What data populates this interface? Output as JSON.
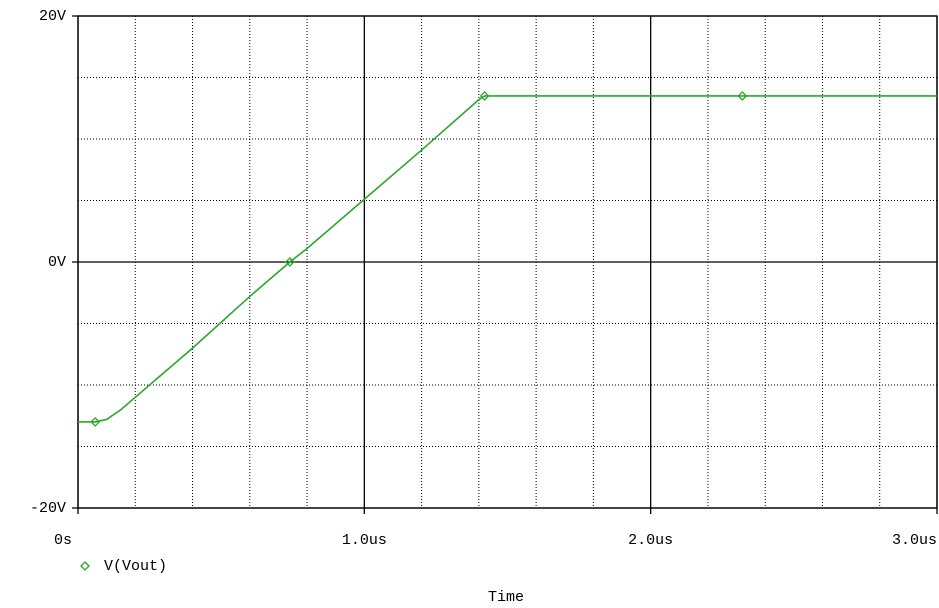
{
  "chart_data": {
    "type": "line",
    "x_label": "Time",
    "xlim": [
      0,
      3
    ],
    "ylim": [
      -20,
      20
    ],
    "xticks": [
      {
        "value": 0,
        "label": "0s"
      },
      {
        "value": 1,
        "label": "1.0us"
      },
      {
        "value": 2,
        "label": "2.0us"
      },
      {
        "value": 3,
        "label": "3.0us"
      }
    ],
    "yticks": [
      {
        "value": -20,
        "label": "-20V"
      },
      {
        "value": 0,
        "label": "0V"
      },
      {
        "value": 20,
        "label": "20V"
      }
    ],
    "x_minor_grid": [
      0.2,
      0.4,
      0.6,
      0.8,
      1.2,
      1.4,
      1.6,
      1.8,
      2.2,
      2.4,
      2.6,
      2.8
    ],
    "y_minor_grid": [
      -15,
      -10,
      -5,
      5,
      10,
      15
    ],
    "x": [
      0,
      0.06,
      0.1,
      0.15,
      0.2,
      0.4,
      0.6,
      0.74,
      0.8,
      1.0,
      1.2,
      1.4,
      1.42,
      1.44,
      2.0,
      2.32,
      3.0
    ],
    "series": [
      {
        "name": "V(Vout)",
        "color": "#2aa82a",
        "values": [
          -13,
          -13,
          -12.8,
          -12,
          -11,
          -7,
          -2.8,
          0,
          1.1,
          5.1,
          9.1,
          13.2,
          13.5,
          13.5,
          13.5,
          13.5,
          13.5
        ],
        "marker_indices": [
          1,
          7,
          12,
          15
        ]
      }
    ]
  }
}
